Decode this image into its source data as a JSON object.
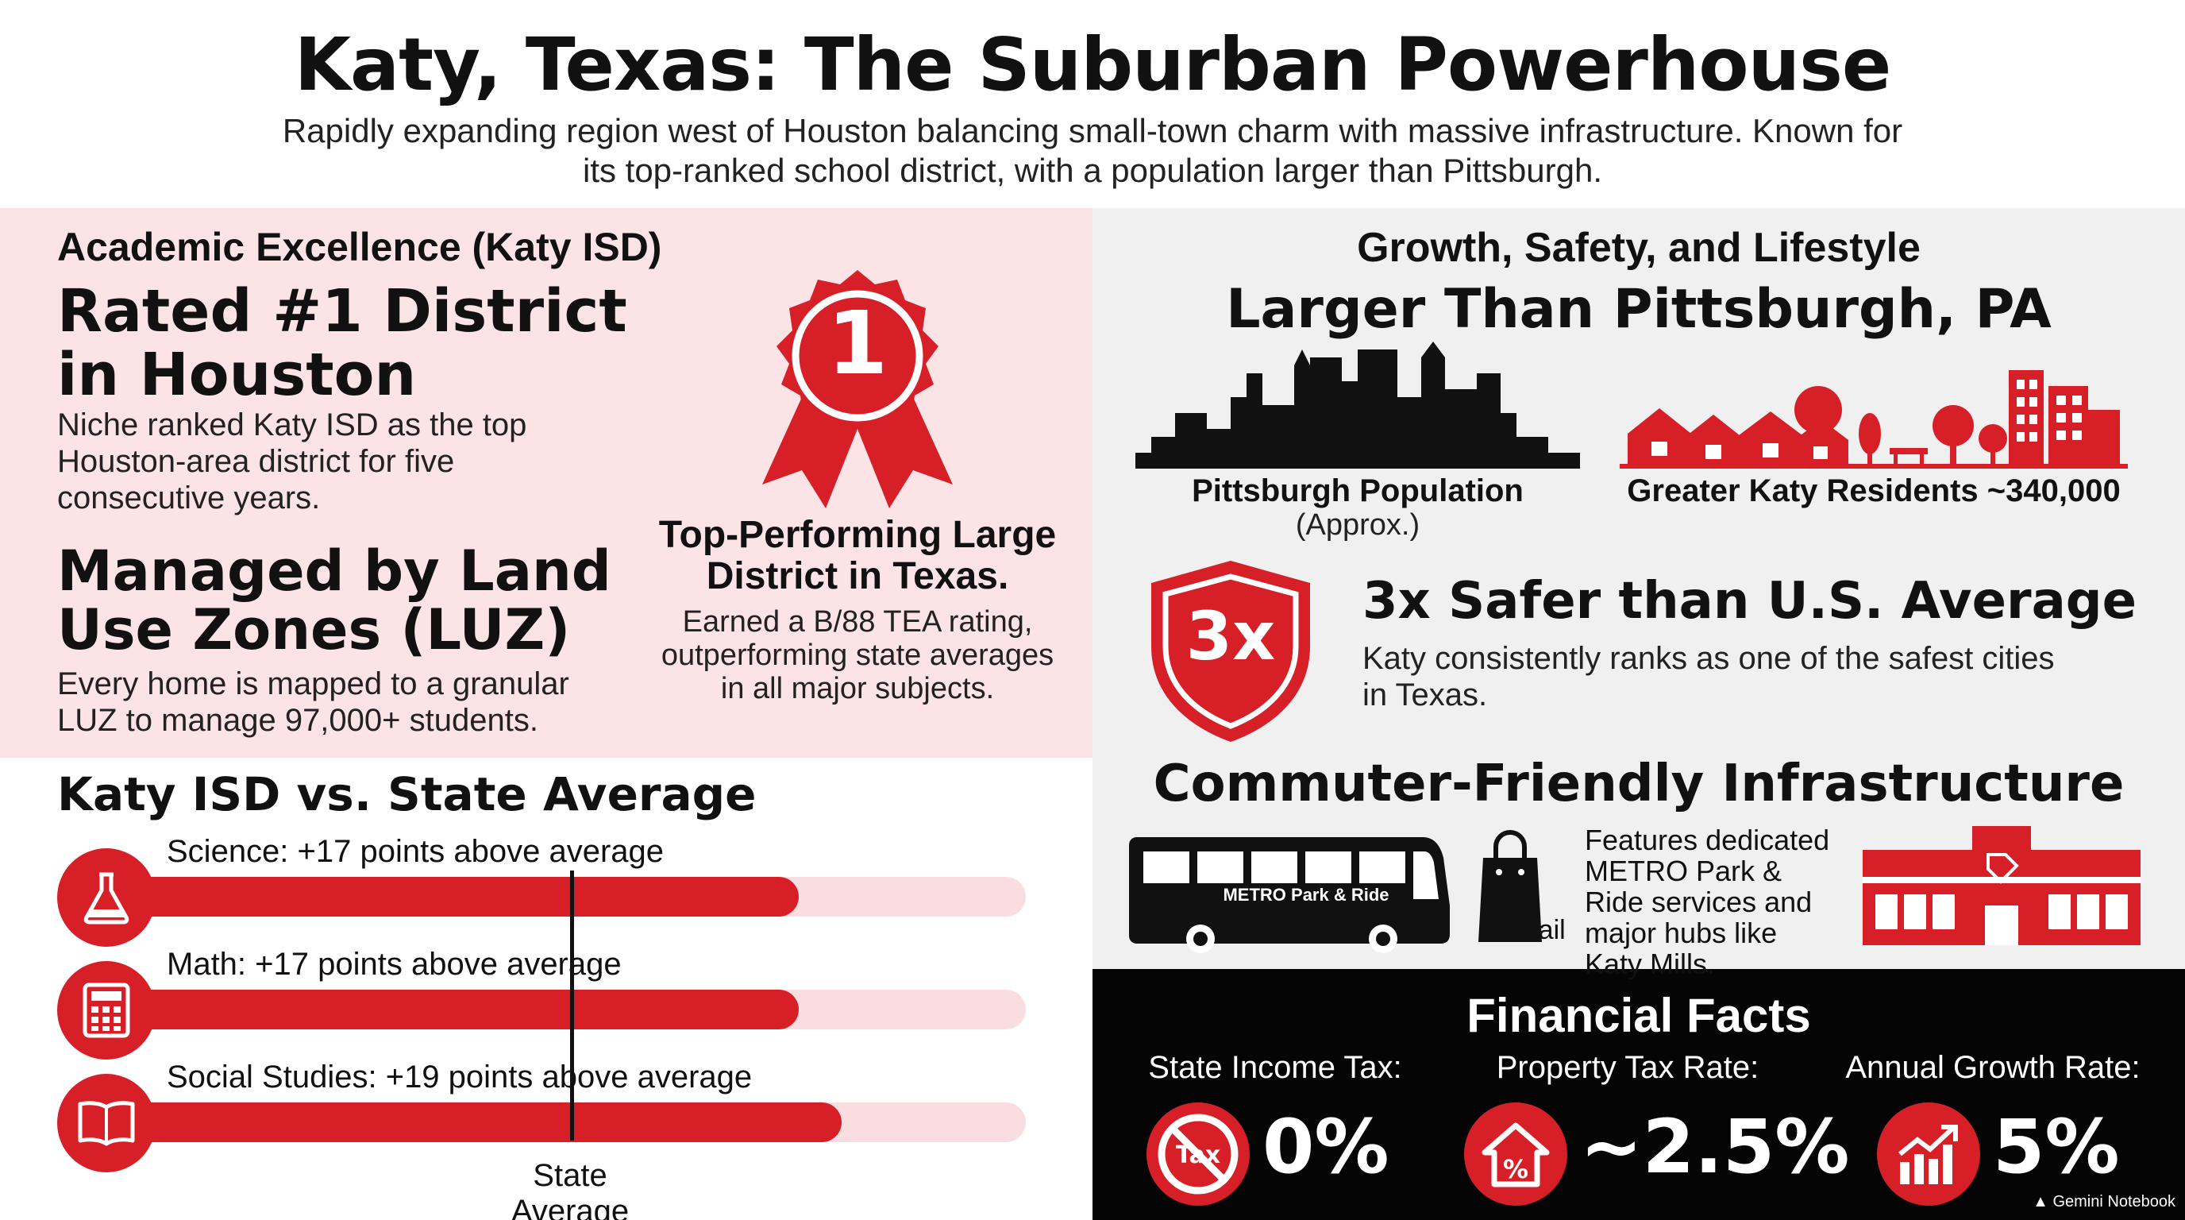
{
  "header": {
    "title": "Katy, Texas: The Suburban Powerhouse",
    "subtitle": "Rapidly expanding region west of Houston balancing small-town charm with massive infrastructure. Known for its top-ranked school district, with a population larger than Pittsburgh."
  },
  "academic": {
    "section_title": "Academic Excellence (Katy ISD)",
    "rated_heading": "Rated #1 District in Houston",
    "rated_text": "Niche ranked Katy ISD as the top Houston-area district for five consecutive years.",
    "luz_heading": "Managed by Land Use Zones (LUZ)",
    "luz_text": "Every home is mapped to a granular LUZ to manage 97,000+ students.",
    "badge_number": "1",
    "top_heading": "Top-Performing Large District in Texas.",
    "top_text": "Earned a B/88 TEA rating, outperforming state averages in all major subjects."
  },
  "comparison": {
    "title": "Katy ISD vs. State Average",
    "state_average_label": "State Average",
    "state_average_fraction": 0.518,
    "bars": [
      {
        "label": "Science: +17 points above average",
        "fill_fraction": 0.76,
        "icon": "flask-icon"
      },
      {
        "label": "Math: +17 points above average",
        "fill_fraction": 0.76,
        "icon": "calculator-icon"
      },
      {
        "label": "Social Studies: +19 points above average",
        "fill_fraction": 0.805,
        "icon": "book-icon"
      }
    ]
  },
  "growth": {
    "section_title": "Growth, Safety, and Lifestyle",
    "pittsburgh_heading": "Larger Than Pittsburgh, PA",
    "pittsburgh_label": "Pittsburgh Population",
    "pittsburgh_sub": "(Approx.)",
    "katy_label": "Greater Katy Residents ~340,000",
    "shield_text": "3x",
    "safety_heading": "3x Safer than U.S. Average",
    "safety_text": "Katy consistently ranks as one of the safest cities in Texas.",
    "commuter_heading": "Commuter-Friendly Infrastructure",
    "bus_text": "METRO Park & Ride",
    "retail_label": "retail",
    "commuter_text": "Features dedicated METRO Park & Ride services and major hubs like Katy Mills."
  },
  "financial": {
    "title": "Financial Facts",
    "items": [
      {
        "label": "State Income Tax:",
        "value": "0%",
        "icon": "no-tax-icon",
        "icon_text": "Tax"
      },
      {
        "label": "Property Tax Rate:",
        "value": "~2.5%",
        "icon": "house-percent-icon"
      },
      {
        "label": "Annual Growth Rate:",
        "value": "5%",
        "icon": "growth-chart-icon"
      }
    ]
  },
  "footer": {
    "brand": "Gemini Notebook"
  },
  "colors": {
    "accent": "#d71f28",
    "pink_bg": "#fbe3e6",
    "gray_bg": "#f0f0f0",
    "dark_bg": "#050505"
  }
}
